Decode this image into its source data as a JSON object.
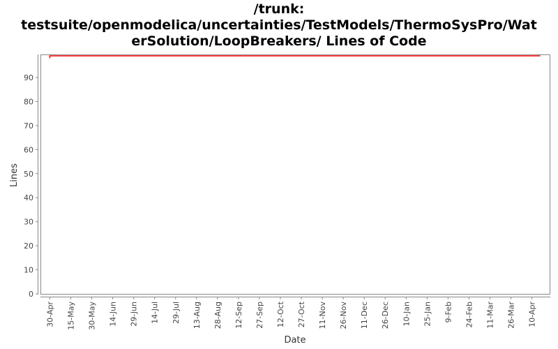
{
  "chart_data": {
    "type": "line",
    "title_lines": [
      "/trunk:",
      "testsuite/openmodelica/uncertainties/TestModels/ThermoSysPro/Wat",
      "erSolution/LoopBreakers/ Lines of Code"
    ],
    "xlabel": "Date",
    "ylabel": "Lines",
    "ylim": [
      0,
      99.3
    ],
    "yticks": [
      0,
      10,
      20,
      30,
      40,
      50,
      60,
      70,
      80,
      90
    ],
    "xticks": [
      "30-Apr",
      "15-May",
      "30-May",
      "14-Jun",
      "29-Jun",
      "14-Jul",
      "29-Jul",
      "13-Aug",
      "28-Aug",
      "12-Sep",
      "27-Sep",
      "12-Oct",
      "27-Oct",
      "11-Nov",
      "26-Nov",
      "11-Dec",
      "26-Dec",
      "10-Jan",
      "25-Jan",
      "9-Feb",
      "24-Feb",
      "11-Mar",
      "26-Mar",
      "10-Apr"
    ],
    "grid": false,
    "legend": "none",
    "series": [
      {
        "color": "#ff0000",
        "points": [
          {
            "x": "30-Apr",
            "y": 98
          },
          {
            "x": "30-Apr",
            "y": 99
          },
          {
            "x": "16-Apr",
            "y": 99
          }
        ]
      }
    ]
  }
}
